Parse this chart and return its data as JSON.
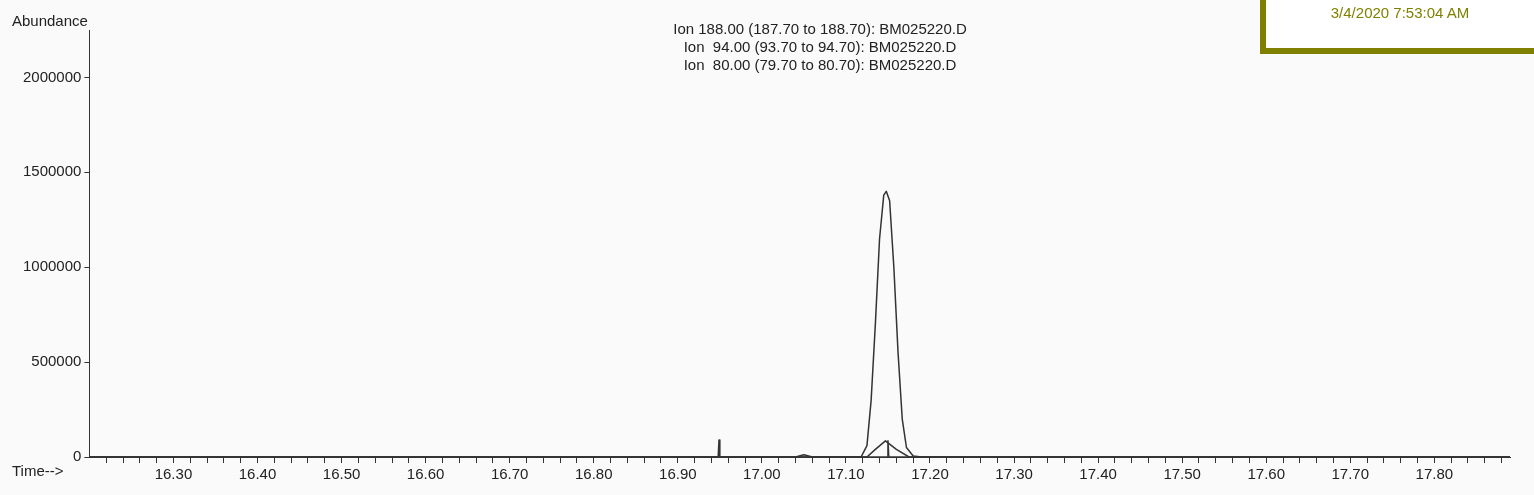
{
  "chart_data": {
    "type": "line",
    "xlabel": "Time-->",
    "ylabel": "Abundance",
    "annotations": [
      "Ion 188.00 (187.70 to 188.70): BM025220.D",
      "Ion  94.00 (93.70 to 94.70): BM025220.D",
      "Ion  80.00 (79.70 to 80.70): BM025220.D",
      "3/4/2020 7:53:04 AM"
    ],
    "series": [
      {
        "color": "#333333",
        "x": [
          16.2,
          17.118,
          17.125,
          17.13,
          17.135,
          17.14,
          17.145,
          17.148,
          17.152,
          17.157,
          17.162,
          17.167,
          17.172,
          17.18,
          17.19,
          17.89
        ],
        "values": [
          0,
          0,
          60000,
          300000,
          700000,
          1150000,
          1380000,
          1400000,
          1350000,
          1000000,
          550000,
          200000,
          50000,
          5000,
          0,
          0
        ]
      },
      {
        "color": "#333333",
        "x": [
          16.2,
          17.04,
          17.05,
          17.06,
          17.125,
          17.135,
          17.147,
          17.16,
          17.175,
          17.89
        ],
        "values": [
          0,
          0,
          12000,
          0,
          0,
          40000,
          85000,
          40000,
          0,
          0
        ]
      },
      {
        "color": "#333333",
        "x": [
          16.2,
          16.948,
          16.949,
          16.95,
          17.149,
          17.15,
          17.151,
          17.89
        ],
        "values": [
          0,
          0,
          90000,
          0,
          0,
          85000,
          0,
          0
        ]
      }
    ],
    "xlim": [
      16.2,
      17.89
    ],
    "xticks": [
      {
        "value": 16.22,
        "label": null
      },
      {
        "value": 16.24,
        "label": null
      },
      {
        "value": 16.26,
        "label": null
      },
      {
        "value": 16.28,
        "label": null
      },
      {
        "value": 16.3,
        "label": "16.30"
      },
      {
        "value": 16.32,
        "label": null
      },
      {
        "value": 16.34,
        "label": null
      },
      {
        "value": 16.36,
        "label": null
      },
      {
        "value": 16.38,
        "label": null
      },
      {
        "value": 16.4,
        "label": "16.40"
      },
      {
        "value": 16.42,
        "label": null
      },
      {
        "value": 16.44,
        "label": null
      },
      {
        "value": 16.46,
        "label": null
      },
      {
        "value": 16.48,
        "label": null
      },
      {
        "value": 16.5,
        "label": "16.50"
      },
      {
        "value": 16.52,
        "label": null
      },
      {
        "value": 16.54,
        "label": null
      },
      {
        "value": 16.56,
        "label": null
      },
      {
        "value": 16.58,
        "label": null
      },
      {
        "value": 16.6,
        "label": "16.60"
      },
      {
        "value": 16.62,
        "label": null
      },
      {
        "value": 16.64,
        "label": null
      },
      {
        "value": 16.66,
        "label": null
      },
      {
        "value": 16.68,
        "label": null
      },
      {
        "value": 16.7,
        "label": "16.70"
      },
      {
        "value": 16.72,
        "label": null
      },
      {
        "value": 16.74,
        "label": null
      },
      {
        "value": 16.76,
        "label": null
      },
      {
        "value": 16.78,
        "label": null
      },
      {
        "value": 16.8,
        "label": "16.80"
      },
      {
        "value": 16.82,
        "label": null
      },
      {
        "value": 16.84,
        "label": null
      },
      {
        "value": 16.86,
        "label": null
      },
      {
        "value": 16.88,
        "label": null
      },
      {
        "value": 16.9,
        "label": "16.90"
      },
      {
        "value": 16.92,
        "label": null
      },
      {
        "value": 16.94,
        "label": null
      },
      {
        "value": 16.96,
        "label": null
      },
      {
        "value": 16.98,
        "label": null
      },
      {
        "value": 17.0,
        "label": "17.00"
      },
      {
        "value": 17.02,
        "label": null
      },
      {
        "value": 17.04,
        "label": null
      },
      {
        "value": 17.06,
        "label": null
      },
      {
        "value": 17.08,
        "label": null
      },
      {
        "value": 17.1,
        "label": "17.10"
      },
      {
        "value": 17.12,
        "label": null
      },
      {
        "value": 17.14,
        "label": null
      },
      {
        "value": 17.16,
        "label": null
      },
      {
        "value": 17.18,
        "label": null
      },
      {
        "value": 17.2,
        "label": "17.20"
      },
      {
        "value": 17.22,
        "label": null
      },
      {
        "value": 17.24,
        "label": null
      },
      {
        "value": 17.26,
        "label": null
      },
      {
        "value": 17.28,
        "label": null
      },
      {
        "value": 17.3,
        "label": "17.30"
      },
      {
        "value": 17.32,
        "label": null
      },
      {
        "value": 17.34,
        "label": null
      },
      {
        "value": 17.36,
        "label": null
      },
      {
        "value": 17.38,
        "label": null
      },
      {
        "value": 17.4,
        "label": "17.40"
      },
      {
        "value": 17.42,
        "label": null
      },
      {
        "value": 17.44,
        "label": null
      },
      {
        "value": 17.46,
        "label": null
      },
      {
        "value": 17.48,
        "label": null
      },
      {
        "value": 17.5,
        "label": "17.50"
      },
      {
        "value": 17.52,
        "label": null
      },
      {
        "value": 17.54,
        "label": null
      },
      {
        "value": 17.56,
        "label": null
      },
      {
        "value": 17.58,
        "label": null
      },
      {
        "value": 17.6,
        "label": "17.60"
      },
      {
        "value": 17.62,
        "label": null
      },
      {
        "value": 17.64,
        "label": null
      },
      {
        "value": 17.66,
        "label": null
      },
      {
        "value": 17.68,
        "label": null
      },
      {
        "value": 17.7,
        "label": "17.70"
      },
      {
        "value": 17.72,
        "label": null
      },
      {
        "value": 17.74,
        "label": null
      },
      {
        "value": 17.76,
        "label": null
      },
      {
        "value": 17.78,
        "label": null
      },
      {
        "value": 17.8,
        "label": "17.80"
      },
      {
        "value": 17.82,
        "label": null
      },
      {
        "value": 17.84,
        "label": null
      },
      {
        "value": 17.86,
        "label": null
      },
      {
        "value": 17.88,
        "label": null
      }
    ],
    "ylim": [
      0,
      2250000
    ],
    "yticks": [
      0,
      500000,
      1000000,
      1500000,
      2000000
    ],
    "grid": false,
    "legend": false,
    "marker": "none",
    "line_style": "solid"
  }
}
